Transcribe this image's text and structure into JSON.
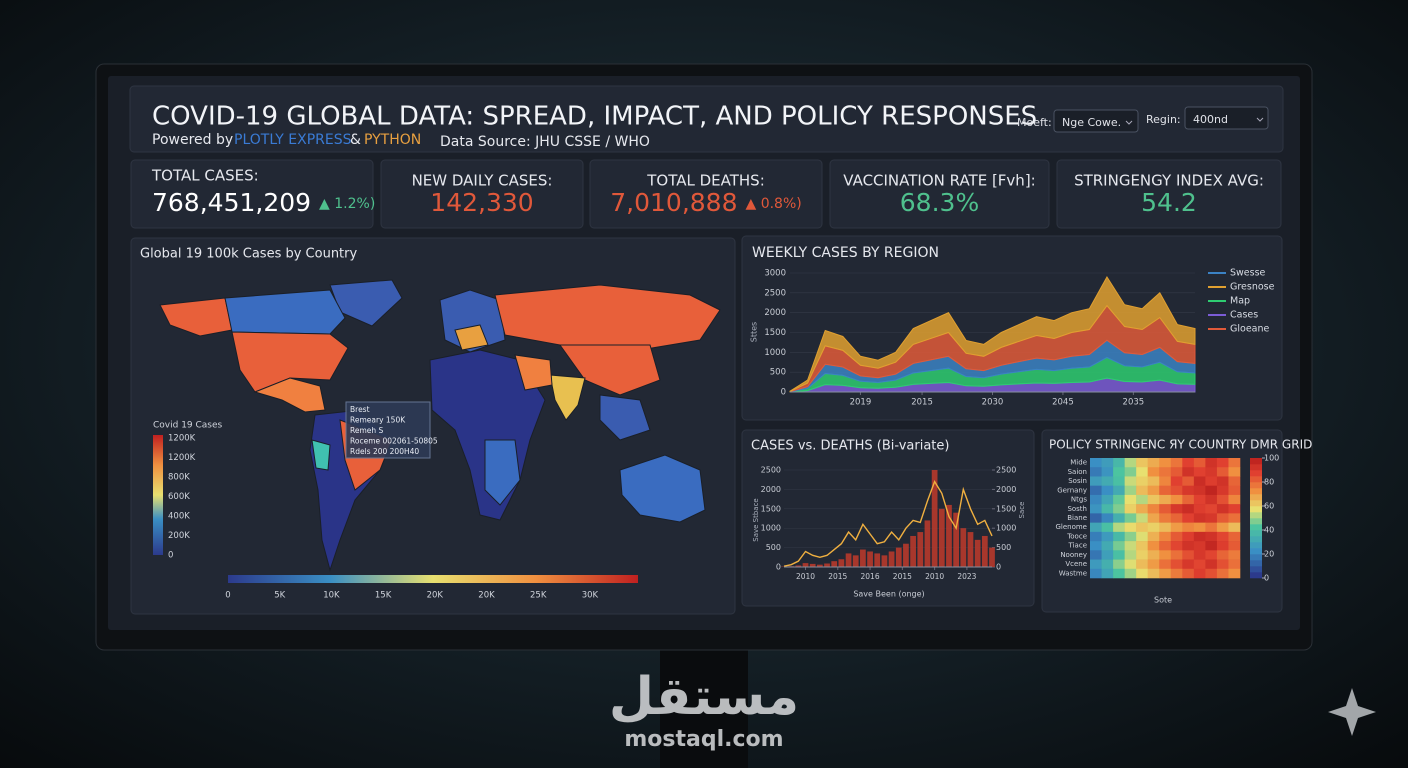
{
  "header": {
    "title": "COVID-19 GLOBAL DATA: SPREAD, IMPACT, AND POLICY RESPONSES",
    "powered": "Powered by",
    "plotly": "PLOTLY EXPRESS",
    "amp": "&",
    "python": "PYTHON",
    "source": "Data Source: JHU CSSE / WHO"
  },
  "controls": [
    {
      "label": "Moeft:",
      "value": "Nge Cowe."
    },
    {
      "label": "Regin:",
      "value": "400nd"
    }
  ],
  "kpis": [
    {
      "label": "TOTAL CASES:",
      "value": "768,451,209",
      "change": "▲ 1.2%)",
      "value_color": "#ffffff",
      "change_color": "#4fc08d"
    },
    {
      "label": "NEW DAILY CASES:",
      "value": "142,330",
      "value_color": "#e0583a"
    },
    {
      "label": "TOTAL DEATHS:",
      "value": "7,010,888",
      "change": "▲ 0.8%)",
      "value_color": "#e0583a",
      "change_color": "#e0583a"
    },
    {
      "label": "VACCINATION RATE [Fvh]:",
      "value": "68.3%",
      "value_color": "#4fc08d"
    },
    {
      "label": "STRINGENGY INDEX AVG:",
      "value": "54.2",
      "value_color": "#4fc08d"
    }
  ],
  "map": {
    "title": "Global 19 100k Cases by Country",
    "legend_title": "Covid 19 Cases",
    "legend_ticks": [
      "1200K",
      "1200K",
      "800K",
      "600K",
      "400K",
      "200K",
      "0"
    ],
    "tooltip": [
      "Brest",
      "Remeary 150K",
      "Remeh S",
      "Roceme 002061-50805",
      "Rdels 200 200H40"
    ],
    "scale_ticks": [
      "0",
      "5K",
      "10K",
      "15K",
      "20K",
      "20K",
      "25K",
      "30K"
    ]
  },
  "weekly": {
    "type": "area",
    "title": "WEEKLY CASES BY REGION",
    "y_label": "Sttes",
    "ylim": [
      0,
      3000
    ],
    "yticks": [
      0,
      500,
      1000,
      1500,
      2000,
      2500,
      3000
    ],
    "xlim": [
      0,
      23
    ],
    "xticks": [
      {
        "value": 4,
        "label": "2019"
      },
      {
        "value": 7.5,
        "label": "2015"
      },
      {
        "value": 11.5,
        "label": "2030"
      },
      {
        "value": 15.5,
        "label": "2045"
      },
      {
        "value": 19.5,
        "label": "2035"
      }
    ],
    "grid": true,
    "series": [
      {
        "name": "Swesse",
        "color": "#3b82c4",
        "values": [
          3,
          45,
          233,
          210,
          135,
          120,
          150,
          240,
          270,
          300,
          195,
          180,
          225,
          255,
          285,
          270,
          300,
          315,
          435,
          330,
          315,
          375,
          255,
          240
        ]
      },
      {
        "name": "Gresnose",
        "color": "#e0a030",
        "values": [
          5,
          75,
          387,
          350,
          225,
          200,
          250,
          400,
          450,
          500,
          325,
          300,
          375,
          425,
          475,
          450,
          500,
          525,
          725,
          550,
          525,
          625,
          425,
          400
        ]
      },
      {
        "name": "Map",
        "color": "#2ecc71",
        "values": [
          4,
          54,
          279,
          252,
          162,
          144,
          180,
          288,
          324,
          360,
          234,
          216,
          270,
          306,
          342,
          324,
          360,
          378,
          522,
          396,
          378,
          450,
          306,
          288
        ]
      },
      {
        "name": "Cases",
        "color": "#7b5cd6",
        "values": [
          2,
          36,
          186,
          168,
          108,
          96,
          120,
          192,
          216,
          240,
          156,
          144,
          180,
          204,
          228,
          216,
          240,
          252,
          348,
          264,
          252,
          300,
          204,
          192
        ]
      },
      {
        "name": "Gloeane",
        "color": "#e05a3a",
        "values": [
          6,
          90,
          465,
          420,
          270,
          240,
          300,
          480,
          540,
          600,
          390,
          360,
          450,
          510,
          570,
          540,
          600,
          630,
          870,
          660,
          630,
          750,
          510,
          480
        ]
      }
    ]
  },
  "cases_deaths": {
    "type": "bar-line",
    "title": "CASES vs. DEATHS (Bi-variate)",
    "y_label": "Save Stbace",
    "y2_label": "Sace",
    "x_label": "Save Been (onge)",
    "ylim": [
      0,
      2500
    ],
    "yticks": [
      0,
      500,
      1000,
      1500,
      2000,
      2500
    ],
    "y2lim": [
      0,
      2500
    ],
    "y2ticks": [
      0,
      500,
      1000,
      1500,
      2000,
      2500
    ],
    "xlim": [
      0,
      29
    ],
    "xticks": [
      {
        "value": 3,
        "label": "2010"
      },
      {
        "value": 7.5,
        "label": "2015"
      },
      {
        "value": 12,
        "label": "2016"
      },
      {
        "value": 16.5,
        "label": "2015"
      },
      {
        "value": 21,
        "label": "2010"
      },
      {
        "value": 25.5,
        "label": "2023"
      }
    ],
    "bars": {
      "color": "#c0392b",
      "values": [
        10,
        20,
        40,
        100,
        80,
        60,
        90,
        150,
        200,
        350,
        300,
        450,
        400,
        350,
        300,
        400,
        500,
        600,
        800,
        900,
        1200,
        2500,
        1500,
        1600,
        1400,
        1000,
        900,
        700,
        800,
        500
      ]
    },
    "line": {
      "color": "#f0b040",
      "axis": "y2",
      "values": [
        20,
        60,
        150,
        400,
        300,
        250,
        300,
        450,
        600,
        900,
        700,
        1100,
        850,
        600,
        650,
        900,
        700,
        1000,
        1200,
        1150,
        1700,
        2200,
        1900,
        1300,
        1000,
        2000,
        1500,
        1100,
        1200,
        800
      ]
    }
  },
  "heatmap": {
    "type": "heatmap",
    "title": "POLICY STRINGENC ЯY COUNTRY DMR GRID",
    "x_label": "Sote",
    "rows": [
      "Mide",
      "Saion",
      "Sosin",
      "Gernany",
      "Ntgs",
      "Sosth",
      "Biane",
      "Glenome",
      "Tooce",
      "Tiace",
      "Nooney",
      "Vcene",
      "Wastme"
    ],
    "clim": [
      0,
      100
    ],
    "cticks": [
      0,
      20,
      40,
      60,
      80,
      100
    ],
    "values": [
      [
        20,
        25,
        35,
        50,
        60,
        65,
        70,
        75,
        85,
        80,
        90,
        85,
        75
      ],
      [
        15,
        22,
        40,
        45,
        55,
        70,
        75,
        80,
        90,
        85,
        88,
        80,
        70
      ],
      [
        25,
        30,
        38,
        52,
        58,
        62,
        72,
        85,
        80,
        92,
        86,
        90,
        78
      ],
      [
        12,
        20,
        30,
        48,
        62,
        68,
        78,
        82,
        88,
        90,
        95,
        88,
        80
      ],
      [
        18,
        28,
        42,
        55,
        50,
        60,
        65,
        70,
        78,
        85,
        90,
        82,
        72
      ],
      [
        22,
        35,
        45,
        58,
        65,
        72,
        80,
        88,
        92,
        86,
        84,
        90,
        85
      ],
      [
        10,
        18,
        32,
        44,
        52,
        66,
        74,
        78,
        85,
        90,
        88,
        80,
        76
      ],
      [
        28,
        38,
        50,
        56,
        60,
        58,
        62,
        68,
        72,
        70,
        75,
        68,
        62
      ],
      [
        16,
        24,
        36,
        46,
        54,
        64,
        72,
        80,
        86,
        92,
        90,
        84,
        78
      ],
      [
        20,
        30,
        44,
        52,
        60,
        70,
        78,
        84,
        90,
        88,
        94,
        86,
        80
      ],
      [
        14,
        26,
        38,
        50,
        58,
        64,
        70,
        76,
        82,
        88,
        84,
        78,
        74
      ],
      [
        24,
        32,
        46,
        54,
        62,
        68,
        76,
        82,
        88,
        84,
        90,
        82,
        76
      ],
      [
        18,
        28,
        40,
        48,
        56,
        62,
        68,
        74,
        80,
        86,
        82,
        76,
        70
      ]
    ]
  },
  "watermark": {
    "arabic": "مستقل",
    "latin": "mostaql.com"
  }
}
